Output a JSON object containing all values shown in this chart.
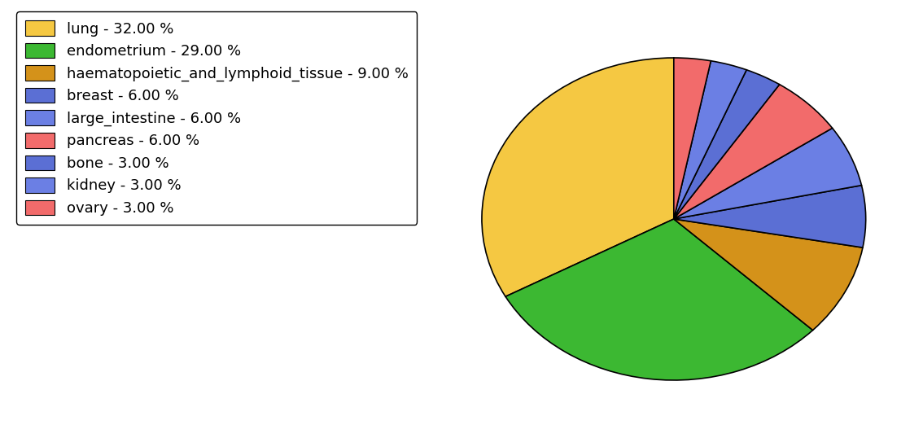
{
  "labels": [
    "lung",
    "endometrium",
    "haematopoietic_and_lymphoid_tissue",
    "breast",
    "large_intestine",
    "pancreas",
    "bone",
    "kidney",
    "ovary"
  ],
  "values": [
    32.0,
    29.0,
    9.0,
    6.0,
    6.0,
    6.0,
    3.0,
    3.0,
    3.0
  ],
  "colors": [
    "#F5C842",
    "#3CB832",
    "#D4921A",
    "#5B6FD4",
    "#6B7FE4",
    "#F26B6B",
    "#5B6FD4",
    "#6B7FE4",
    "#F26B6B"
  ],
  "legend_labels": [
    "lung - 32.00 %",
    "endometrium - 29.00 %",
    "haematopoietic_and_lymphoid_tissue - 9.00 %",
    "breast - 6.00 %",
    "large_intestine - 6.00 %",
    "pancreas - 6.00 %",
    "bone - 3.00 %",
    "kidney - 3.00 %",
    "ovary - 3.00 %"
  ],
  "legend_colors": [
    "#F5C842",
    "#3CB832",
    "#D4921A",
    "#5B6FD4",
    "#6B7FE4",
    "#F26B6B",
    "#5B6FD4",
    "#6B7FE4",
    "#F26B6B"
  ],
  "startangle": 90,
  "figure_width": 11.34,
  "figure_height": 5.38,
  "legend_fontsize": 13
}
